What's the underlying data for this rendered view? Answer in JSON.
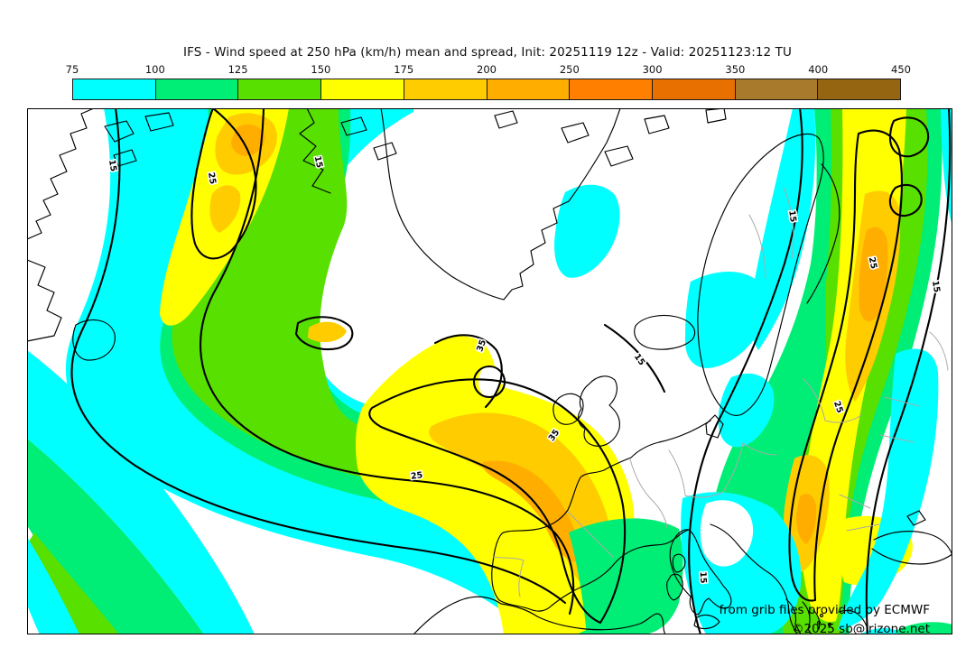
{
  "title": "IFS - Wind speed at 250 hPa (km/h) mean and spread, Init: 20251119 12z - Valid: 20251123:12 TU",
  "colorbar": {
    "tick_labels": [
      "75",
      "100",
      "125",
      "150",
      "175",
      "200",
      "250",
      "300",
      "350",
      "400",
      "450"
    ],
    "segment_colors": [
      "#00ffff",
      "#00ee76",
      "#58e000",
      "#ffff00",
      "#ffcc00",
      "#ffae00",
      "#ff7f00",
      "#e87000",
      "#a87b2c",
      "#966511"
    ]
  },
  "map": {
    "contour_labels": {
      "spread_15": "15",
      "spread_25": "25",
      "spread_35": "35"
    },
    "attribution_line1": "from grib files provided by ECMWF",
    "attribution_line2": "©2025 sb@irizone.net"
  },
  "palette": {
    "cyan": "#00ffff",
    "green": "#00ee76",
    "yellow_green": "#58e000",
    "yellow": "#ffff00",
    "gold": "#ffcc00",
    "orange": "#ffae00",
    "deep_orange": "#ff7f00",
    "border_gray": "#aaaaaa"
  },
  "chart_data": {
    "type": "heatmap",
    "title": "IFS - Wind speed at 250 hPa (km/h) mean and spread, Init: 20251119 12z - Valid: 20251123:12 TU",
    "variable": "Wind speed at 250 hPa",
    "unit": "km/h",
    "model": "IFS",
    "init": "20251119 12z",
    "valid": "20251123:12 TU",
    "legend_position": "top",
    "scale_values": [
      75,
      100,
      125,
      150,
      175,
      200,
      250,
      300,
      350,
      400,
      450
    ],
    "scale_colors": [
      "#00ffff",
      "#00ee76",
      "#58e000",
      "#ffff00",
      "#ffcc00",
      "#ffae00",
      "#ff7f00",
      "#e87000",
      "#a87b2c",
      "#966511"
    ],
    "spread_contour_levels": [
      15,
      25,
      35
    ]
  }
}
